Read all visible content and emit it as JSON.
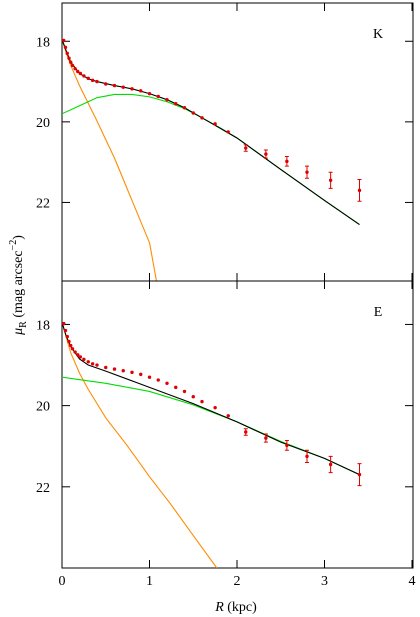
{
  "xlabel": {
    "symbol": "R",
    "unit": "(kpc)"
  },
  "ylabel": {
    "symbol": "μ",
    "sub": "R",
    "unit": "(mag arcsec",
    "sup": "−2",
    "close": ")"
  },
  "chart_data": [
    {
      "type": "line",
      "annotation": "K",
      "xlim": [
        0,
        4
      ],
      "xticks": [
        0,
        1,
        2,
        3,
        4
      ],
      "show_xtick_labels": false,
      "ylim": [
        17.05,
        23.95
      ],
      "y_inverted": true,
      "yticks": [
        18,
        20,
        22
      ],
      "series": [
        {
          "style": "line",
          "color": "#ff8c00",
          "x": [
            0,
            0.05,
            0.1,
            0.2,
            0.4,
            0.6,
            0.8,
            1.0,
            1.08
          ],
          "values": [
            17.95,
            18.3,
            18.6,
            19.1,
            19.98,
            20.9,
            21.95,
            23.0,
            23.95
          ]
        },
        {
          "style": "line",
          "color": "#00dd00",
          "x": [
            0,
            0.2,
            0.4,
            0.6,
            0.8,
            1.0,
            1.2,
            1.4,
            1.6,
            1.8,
            2.0,
            2.5,
            3.0,
            3.4
          ],
          "values": [
            19.8,
            19.6,
            19.4,
            19.32,
            19.32,
            19.38,
            19.5,
            19.67,
            19.9,
            20.14,
            20.4,
            21.18,
            21.95,
            22.55
          ]
        },
        {
          "style": "line",
          "color": "#000000",
          "x": [
            0,
            0.05,
            0.1,
            0.2,
            0.3,
            0.4,
            0.6,
            0.8,
            1.0,
            1.2,
            1.4,
            1.6,
            1.8,
            2.0,
            2.5,
            3.0,
            3.4
          ],
          "values": [
            17.95,
            18.25,
            18.52,
            18.8,
            18.93,
            19.0,
            19.1,
            19.18,
            19.3,
            19.45,
            19.65,
            19.9,
            20.15,
            20.4,
            21.18,
            21.95,
            22.55
          ]
        },
        {
          "style": "markers",
          "color": "#e00000",
          "x": [
            0.02,
            0.04,
            0.06,
            0.08,
            0.1,
            0.12,
            0.15,
            0.18,
            0.21,
            0.25,
            0.3,
            0.35,
            0.4,
            0.5,
            0.6,
            0.7,
            0.8,
            0.9,
            1.0,
            1.1,
            1.2,
            1.3,
            1.4,
            1.5,
            1.6,
            1.75,
            1.9,
            2.1,
            2.33,
            2.57,
            2.8,
            3.07,
            3.4
          ],
          "values": [
            17.98,
            18.15,
            18.3,
            18.42,
            18.52,
            18.6,
            18.68,
            18.75,
            18.8,
            18.86,
            18.92,
            18.97,
            19.0,
            19.06,
            19.1,
            19.14,
            19.18,
            19.23,
            19.3,
            19.37,
            19.45,
            19.55,
            19.65,
            19.78,
            19.9,
            20.05,
            20.25,
            20.65,
            20.8,
            20.98,
            21.25,
            21.45,
            21.7
          ],
          "errors": [
            null,
            null,
            null,
            null,
            null,
            null,
            null,
            null,
            null,
            null,
            null,
            null,
            null,
            null,
            null,
            null,
            null,
            null,
            null,
            null,
            null,
            null,
            null,
            null,
            null,
            null,
            null,
            0.08,
            0.1,
            0.12,
            0.15,
            0.2,
            0.27
          ]
        }
      ]
    },
    {
      "type": "line",
      "annotation": "E",
      "xlim": [
        0,
        4
      ],
      "xticks": [
        0,
        1,
        2,
        3,
        4
      ],
      "show_xtick_labels": true,
      "ylim": [
        16.93,
        24.0
      ],
      "y_inverted": true,
      "yticks": [
        18,
        20,
        22
      ],
      "series": [
        {
          "style": "line",
          "color": "#ff8c00",
          "x": [
            0,
            0.1,
            0.2,
            0.3,
            0.5,
            0.75,
            1.0,
            1.25,
            1.5,
            1.77
          ],
          "values": [
            17.95,
            18.7,
            19.2,
            19.6,
            20.3,
            21.0,
            21.75,
            22.45,
            23.2,
            24.0
          ]
        },
        {
          "style": "line",
          "color": "#00dd00",
          "x": [
            0,
            0.5,
            1.0,
            1.5,
            2.0,
            2.5,
            3.0,
            3.4
          ],
          "values": [
            19.3,
            19.45,
            19.65,
            19.98,
            20.4,
            20.88,
            21.3,
            21.7
          ]
        },
        {
          "style": "line",
          "color": "#000000",
          "x": [
            0,
            0.05,
            0.1,
            0.2,
            0.3,
            0.5,
            1.0,
            1.5,
            2.0,
            2.5,
            3.0,
            3.4
          ],
          "values": [
            17.95,
            18.3,
            18.55,
            18.85,
            19.0,
            19.15,
            19.55,
            19.95,
            20.4,
            20.9,
            21.3,
            21.7
          ]
        },
        {
          "style": "markers",
          "color": "#e00000",
          "x": [
            0.02,
            0.04,
            0.06,
            0.08,
            0.1,
            0.12,
            0.15,
            0.18,
            0.21,
            0.25,
            0.3,
            0.35,
            0.4,
            0.5,
            0.6,
            0.7,
            0.8,
            0.9,
            1.0,
            1.1,
            1.2,
            1.3,
            1.4,
            1.5,
            1.6,
            1.75,
            1.9,
            2.1,
            2.33,
            2.57,
            2.8,
            3.07,
            3.4
          ],
          "values": [
            17.98,
            18.15,
            18.3,
            18.42,
            18.52,
            18.6,
            18.68,
            18.75,
            18.8,
            18.86,
            18.92,
            18.97,
            19.0,
            19.06,
            19.1,
            19.14,
            19.18,
            19.23,
            19.3,
            19.37,
            19.45,
            19.55,
            19.65,
            19.78,
            19.9,
            20.05,
            20.25,
            20.65,
            20.8,
            20.98,
            21.25,
            21.45,
            21.7
          ],
          "errors": [
            null,
            null,
            null,
            null,
            null,
            null,
            null,
            null,
            null,
            null,
            null,
            null,
            null,
            null,
            null,
            null,
            null,
            null,
            null,
            null,
            null,
            null,
            null,
            null,
            null,
            null,
            null,
            0.08,
            0.1,
            0.12,
            0.15,
            0.2,
            0.27
          ]
        }
      ]
    }
  ]
}
